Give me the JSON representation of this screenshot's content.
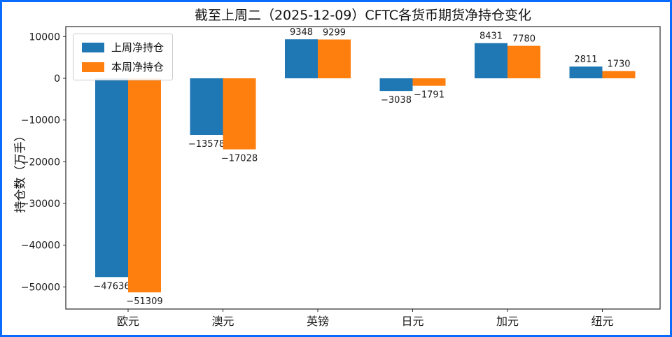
{
  "window": {
    "border_color": "#0a6cff",
    "background": "#ffffff"
  },
  "chart_data": {
    "type": "bar",
    "title": "截至上周二（2025-12-09）CFTC各货币期货净持仓变化",
    "xlabel": "",
    "ylabel": "持仓数（万手）",
    "categories": [
      "欧元",
      "澳元",
      "英镑",
      "日元",
      "加元",
      "纽元"
    ],
    "series": [
      {
        "name": "上周净持仓",
        "color": "#1f77b4",
        "values": [
          -47636,
          -13578,
          9348,
          -3038,
          8431,
          2811
        ]
      },
      {
        "name": "本周净持仓",
        "color": "#ff7f0e",
        "values": [
          -51309,
          -17028,
          9299,
          -1791,
          7780,
          1730
        ]
      }
    ],
    "yticks": [
      10000,
      0,
      -10000,
      -20000,
      -30000,
      -40000,
      -50000
    ],
    "ylim": [
      -55300,
      12400
    ],
    "grid": false,
    "legend_position": "upper-left",
    "value_labels": true,
    "axis_color": "#2a2a2a",
    "text_color": "#1a1a1a"
  }
}
